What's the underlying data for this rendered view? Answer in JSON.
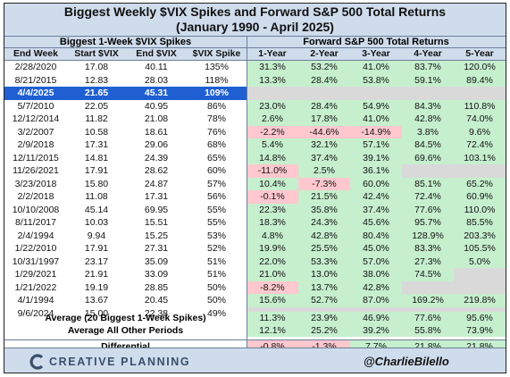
{
  "title": {
    "line1": "Biggest Weekly $VIX Spikes and Forward S&P 500 Total Returns",
    "line2": "(January 1990 - April 2025)"
  },
  "headers": {
    "left_group": "Biggest 1-Week $VIX Spikes",
    "right_group": "Forward S&P 500 Total Returns",
    "columns": [
      "End Week",
      "Start $VIX",
      "End $VIX",
      "$VIX Spike",
      "1-Year",
      "2-Year",
      "3-Year",
      "4-Year",
      "5-Year"
    ]
  },
  "rows": [
    {
      "week": "2/28/2020",
      "start": "17.08",
      "end": "40.11",
      "spike": "135%",
      "r": [
        "31.3%",
        "53.2%",
        "41.0%",
        "83.7%",
        "120.0%"
      ]
    },
    {
      "week": "8/21/2015",
      "start": "12.83",
      "end": "28.03",
      "spike": "118%",
      "r": [
        "13.3%",
        "28.4%",
        "53.8%",
        "59.1%",
        "89.4%"
      ]
    },
    {
      "week": "4/4/2025",
      "start": "21.65",
      "end": "45.31",
      "spike": "109%",
      "r": [
        "",
        "",
        "",
        "",
        ""
      ],
      "highlight": true
    },
    {
      "week": "5/7/2010",
      "start": "22.05",
      "end": "40.95",
      "spike": "86%",
      "r": [
        "23.0%",
        "28.4%",
        "54.9%",
        "84.3%",
        "110.8%"
      ]
    },
    {
      "week": "12/12/2014",
      "start": "11.82",
      "end": "21.08",
      "spike": "78%",
      "r": [
        "2.6%",
        "17.8%",
        "41.0%",
        "42.8%",
        "74.0%"
      ]
    },
    {
      "week": "3/2/2007",
      "start": "10.58",
      "end": "18.61",
      "spike": "76%",
      "r": [
        "-2.2%",
        "-44.6%",
        "-14.9%",
        "3.8%",
        "9.6%"
      ]
    },
    {
      "week": "2/9/2018",
      "start": "17.31",
      "end": "29.06",
      "spike": "68%",
      "r": [
        "5.4%",
        "32.1%",
        "57.1%",
        "84.5%",
        "72.4%"
      ]
    },
    {
      "week": "12/11/2015",
      "start": "14.81",
      "end": "24.39",
      "spike": "65%",
      "r": [
        "14.8%",
        "37.4%",
        "39.1%",
        "69.6%",
        "103.1%"
      ]
    },
    {
      "week": "11/26/2021",
      "start": "17.91",
      "end": "28.62",
      "spike": "60%",
      "r": [
        "-11.0%",
        "2.5%",
        "36.1%",
        "",
        ""
      ]
    },
    {
      "week": "3/23/2018",
      "start": "15.80",
      "end": "24.87",
      "spike": "57%",
      "r": [
        "10.4%",
        "-7.3%",
        "60.0%",
        "85.1%",
        "65.2%"
      ]
    },
    {
      "week": "2/2/2018",
      "start": "11.08",
      "end": "17.31",
      "spike": "56%",
      "r": [
        "-0.1%",
        "21.5%",
        "42.4%",
        "72.4%",
        "60.9%"
      ]
    },
    {
      "week": "10/10/2008",
      "start": "45.14",
      "end": "69.95",
      "spike": "55%",
      "r": [
        "22.3%",
        "35.8%",
        "37.4%",
        "77.6%",
        "110.0%"
      ]
    },
    {
      "week": "8/11/2017",
      "start": "10.03",
      "end": "15.51",
      "spike": "55%",
      "r": [
        "18.3%",
        "24.3%",
        "45.6%",
        "95.7%",
        "85.5%"
      ]
    },
    {
      "week": "2/4/1994",
      "start": "9.94",
      "end": "15.25",
      "spike": "53%",
      "r": [
        "4.8%",
        "42.8%",
        "80.4%",
        "128.9%",
        "203.3%"
      ]
    },
    {
      "week": "1/22/2010",
      "start": "17.91",
      "end": "27.31",
      "spike": "52%",
      "r": [
        "19.9%",
        "25.5%",
        "45.0%",
        "83.3%",
        "105.5%"
      ]
    },
    {
      "week": "10/31/1997",
      "start": "23.17",
      "end": "35.09",
      "spike": "51%",
      "r": [
        "22.0%",
        "53.3%",
        "57.0%",
        "27.3%",
        "5.0%"
      ]
    },
    {
      "week": "1/29/2021",
      "start": "21.91",
      "end": "33.09",
      "spike": "51%",
      "r": [
        "21.0%",
        "13.0%",
        "38.0%",
        "74.5%",
        ""
      ]
    },
    {
      "week": "1/21/2022",
      "start": "19.19",
      "end": "28.85",
      "spike": "50%",
      "r": [
        "-8.2%",
        "13.7%",
        "42.8%",
        "",
        ""
      ]
    },
    {
      "week": "4/1/1994",
      "start": "13.67",
      "end": "20.45",
      "spike": "50%",
      "r": [
        "15.6%",
        "52.7%",
        "87.0%",
        "169.2%",
        "219.8%"
      ]
    },
    {
      "week": "9/6/2024",
      "start": "15.00",
      "end": "22.38",
      "spike": "49%",
      "r": [
        "",
        "",
        "",
        "",
        ""
      ]
    }
  ],
  "summary": [
    {
      "label": "Average (20 Biggest 1-Week Spikes)",
      "r": [
        "11.3%",
        "23.9%",
        "46.9%",
        "77.6%",
        "95.6%"
      ]
    },
    {
      "label": "Average All Other Periods",
      "r": [
        "12.1%",
        "25.2%",
        "39.2%",
        "55.8%",
        "73.9%"
      ]
    },
    {
      "label": "Differential",
      "r": [
        "-0.8%",
        "-1.3%",
        "7.7%",
        "21.8%",
        "21.8%"
      ]
    }
  ],
  "footer": {
    "logo_text": "CREATIVE PLANNING",
    "logo_icon": "creative-planning-c-icon",
    "handle": "@CharlieBilello"
  },
  "colors": {
    "header_bg": "#cfdcec",
    "positive": "#c6efce",
    "negative": "#ffc7ce",
    "empty": "#d9d9d9",
    "highlight": "#1f5fd1"
  }
}
